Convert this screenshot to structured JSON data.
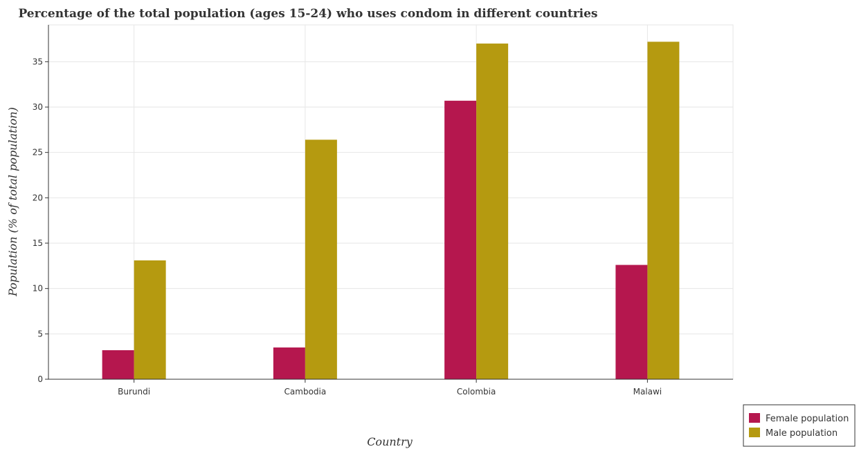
{
  "chart_data": {
    "type": "bar",
    "title": "Percentage of the total population (ages 15-24) who uses condom in different countries",
    "xlabel": "Country",
    "ylabel": "Population (% of total population)",
    "categories": [
      "Burundi",
      "Cambodia",
      "Colombia",
      "Malawi"
    ],
    "series": [
      {
        "name": "Female population",
        "color": "#b5174e",
        "values": [
          3.2,
          3.5,
          30.7,
          12.6
        ]
      },
      {
        "name": "Male population",
        "color": "#b59a10",
        "values": [
          13.1,
          26.4,
          37.0,
          37.2
        ]
      }
    ],
    "ylim": [
      0,
      39.06
    ],
    "yticks": [
      0,
      5,
      10,
      15,
      20,
      25,
      30,
      35
    ],
    "grid": true,
    "legend_position": "bottom-right"
  }
}
